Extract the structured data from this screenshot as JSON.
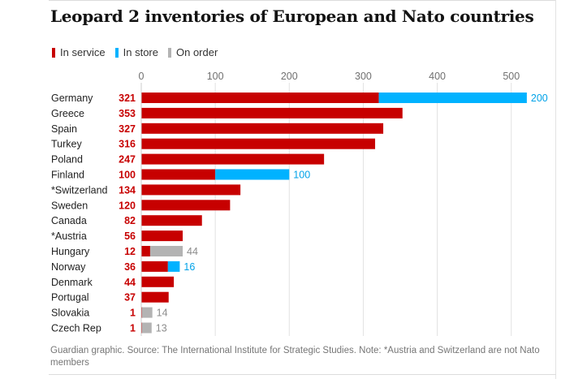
{
  "title": "Leopard 2 inventories of European and Nato countries",
  "legend": [
    {
      "label": "In service",
      "color": "#c70000"
    },
    {
      "label": "In store",
      "color": "#00b2ff"
    },
    {
      "label": "On order",
      "color": "#b3b3b3"
    }
  ],
  "footer": "Guardian graphic. Source: The International Institute for Strategic Studies. Note: *Austria and Switzerland are not Nato members",
  "chart_data": {
    "type": "bar",
    "orientation": "horizontal",
    "stacked": true,
    "title": "Leopard 2 inventories of European and Nato countries",
    "xlim": [
      0,
      520
    ],
    "xticks": [
      0,
      100,
      200,
      300,
      400,
      500
    ],
    "categories": [
      "Germany",
      "Greece",
      "Spain",
      "Turkey",
      "Poland",
      "Finland",
      "*Switzerland",
      "Sweden",
      "Canada",
      "*Austria",
      "Hungary",
      "Norway",
      "Denmark",
      "Portugal",
      "Slovakia",
      "Czech Rep"
    ],
    "series": [
      {
        "name": "In service",
        "color": "#c70000",
        "values": [
          321,
          353,
          327,
          316,
          247,
          100,
          134,
          120,
          82,
          56,
          12,
          36,
          44,
          37,
          1,
          1
        ]
      },
      {
        "name": "In store",
        "color": "#00b2ff",
        "values": [
          200,
          0,
          0,
          0,
          0,
          100,
          0,
          0,
          0,
          0,
          0,
          16,
          0,
          0,
          0,
          0
        ]
      },
      {
        "name": "On order",
        "color": "#b3b3b3",
        "values": [
          0,
          0,
          0,
          0,
          0,
          0,
          0,
          0,
          0,
          0,
          44,
          0,
          0,
          0,
          14,
          13
        ]
      }
    ]
  }
}
